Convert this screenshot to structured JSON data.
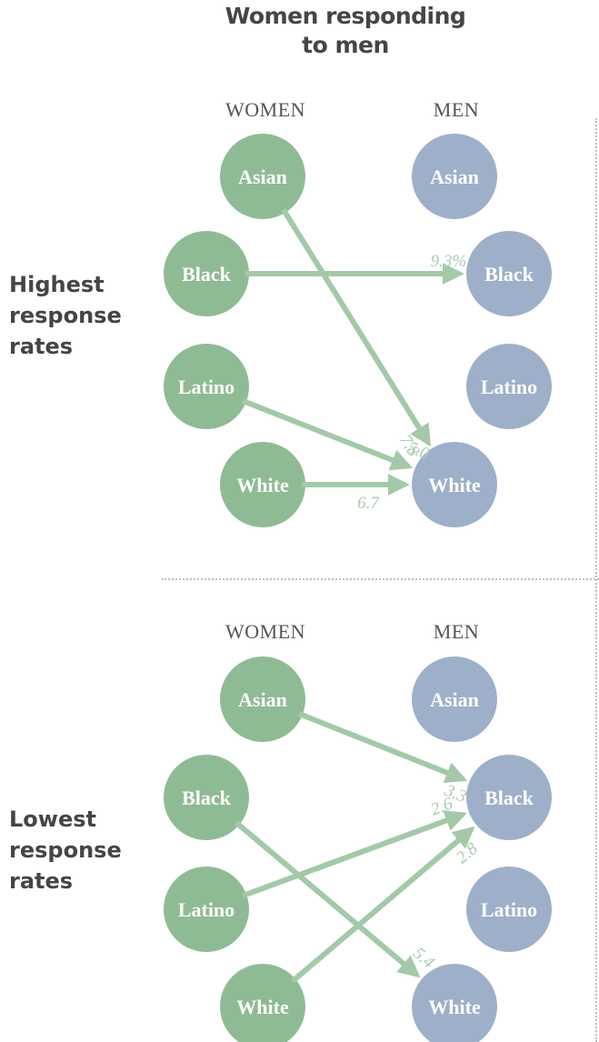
{
  "title": {
    "line1": "Women responding",
    "line2": "to men"
  },
  "column_headers": {
    "women": "WOMEN",
    "men": "MEN"
  },
  "colors": {
    "women_node": "#8fbb94",
    "men_node": "#9eb0c9",
    "arrow": "#a3c9a8",
    "value_label": "#a9cbb0",
    "text": "#454545"
  },
  "panels": [
    {
      "label": [
        "Highest",
        "response",
        "rates"
      ],
      "women": [
        "Asian",
        "Black",
        "Latino",
        "White"
      ],
      "men": [
        "Asian",
        "Black",
        "Latino",
        "White"
      ],
      "flows": [
        {
          "from": "Black",
          "to": "Black",
          "value": "9.3%"
        },
        {
          "from": "Asian",
          "to": "White",
          "value": "7.8"
        },
        {
          "from": "Latino",
          "to": "White",
          "value": "5.0"
        },
        {
          "from": "White",
          "to": "White",
          "value": "6.7"
        }
      ]
    },
    {
      "label": [
        "Lowest",
        "response",
        "rates"
      ],
      "women": [
        "Asian",
        "Black",
        "Latino",
        "White"
      ],
      "men": [
        "Asian",
        "Black",
        "Latino",
        "White"
      ],
      "flows": [
        {
          "from": "Asian",
          "to": "Black",
          "value": "3.3"
        },
        {
          "from": "Latino",
          "to": "Black",
          "value": "2.6"
        },
        {
          "from": "White",
          "to": "Black",
          "value": "2.8"
        },
        {
          "from": "Black",
          "to": "White",
          "value": "5.4"
        }
      ]
    }
  ]
}
